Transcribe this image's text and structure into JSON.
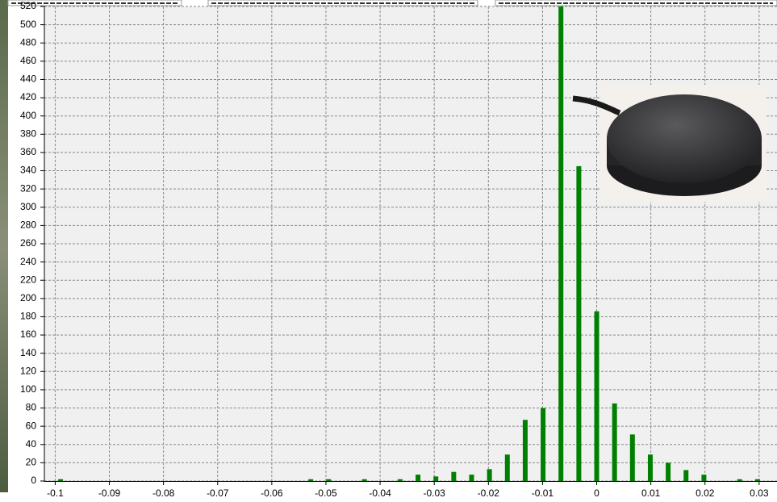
{
  "chart_data": {
    "type": "bar",
    "x": [
      -0.099,
      -0.0528,
      -0.0495,
      -0.0429,
      -0.0363,
      -0.033,
      -0.0297,
      -0.0264,
      -0.0231,
      -0.0198,
      -0.0165,
      -0.0132,
      -0.0099,
      -0.0066,
      -0.0033,
      0,
      0.0033,
      0.0066,
      0.0099,
      0.0132,
      0.0165,
      0.0198,
      0.0264,
      0.0297
    ],
    "values": [
      2,
      2,
      2,
      2,
      2,
      7,
      5,
      10,
      7,
      13,
      29,
      67,
      80,
      520,
      345,
      186,
      85,
      51,
      29,
      20,
      12,
      7,
      2,
      2
    ],
    "color": "#008000",
    "xlim": [
      -0.102,
      0.0333
    ],
    "ylim": [
      0,
      520
    ],
    "xticks": [
      -0.1,
      -0.09,
      -0.08,
      -0.07,
      -0.06,
      -0.05,
      -0.04,
      -0.03,
      -0.02,
      -0.01,
      0,
      0.01,
      0.02,
      0.03
    ],
    "yticks": [
      0,
      20,
      40,
      60,
      80,
      100,
      120,
      140,
      160,
      180,
      200,
      220,
      240,
      260,
      280,
      300,
      320,
      340,
      360,
      380,
      400,
      420,
      440,
      460,
      480,
      500,
      520
    ],
    "grid": true
  }
}
